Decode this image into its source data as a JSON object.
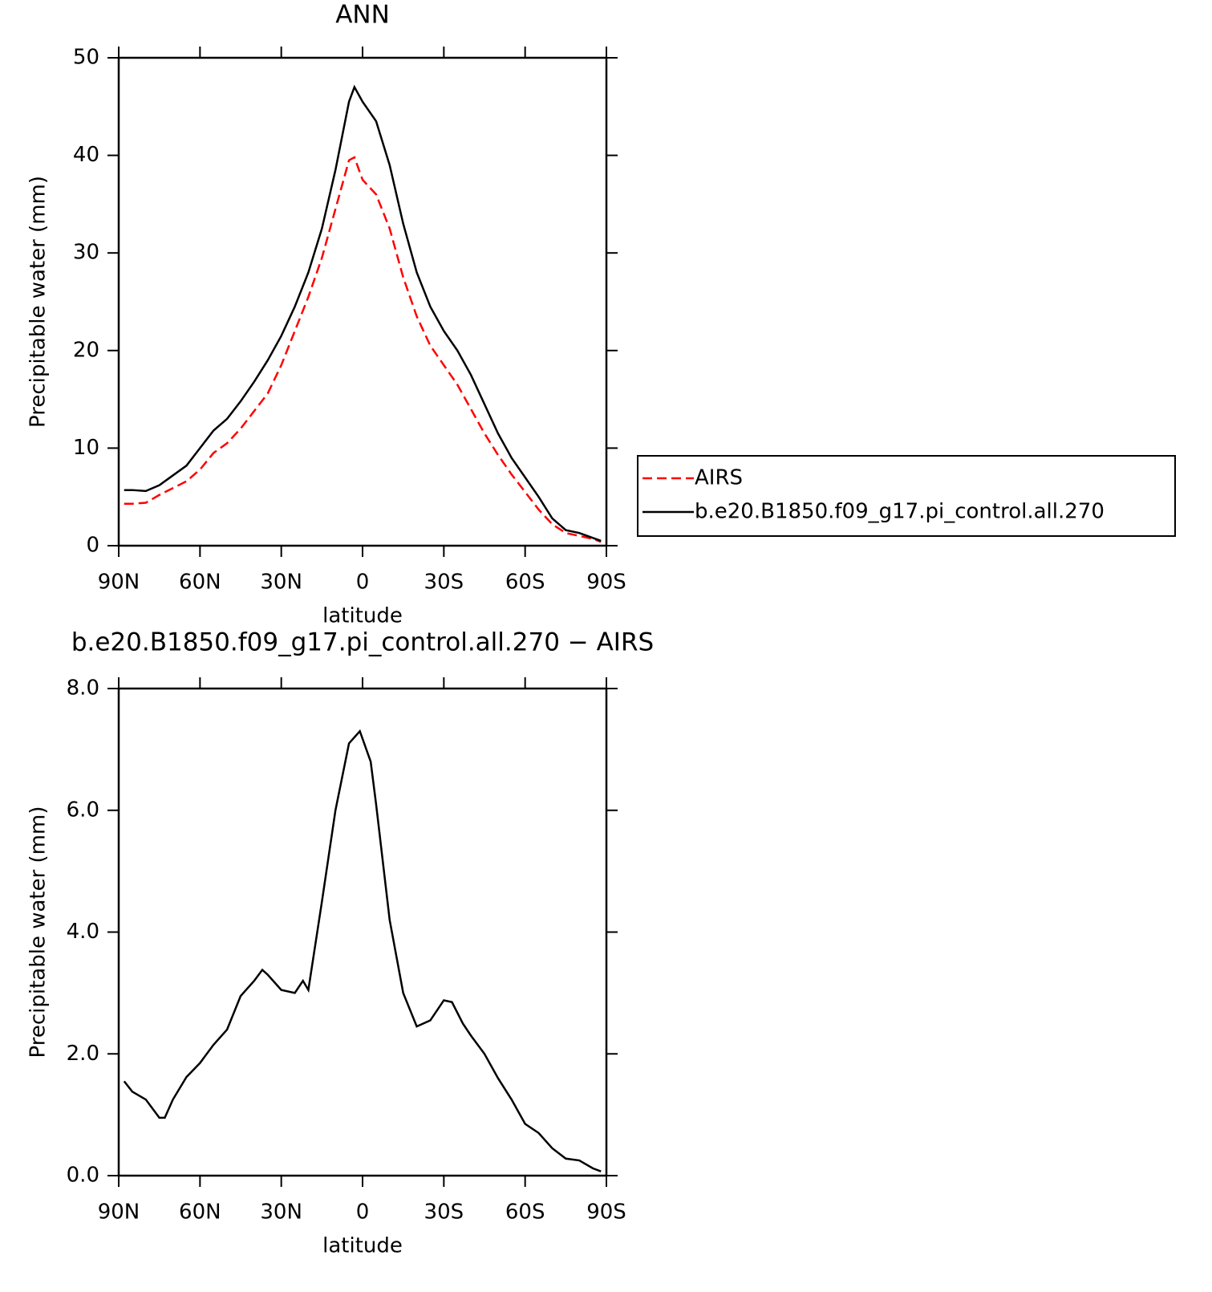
{
  "chart_data": [
    {
      "type": "line",
      "title": "ANN",
      "x_label": "latitude",
      "y_label": "Precipitable water (mm)",
      "xlim": [
        90,
        -90
      ],
      "xticks": [
        {
          "value": 90,
          "label": "90N"
        },
        {
          "value": 60,
          "label": "60N"
        },
        {
          "value": 30,
          "label": "30N"
        },
        0,
        {
          "value": -30,
          "label": "30S"
        },
        {
          "value": -60,
          "label": "60S"
        },
        {
          "value": -90,
          "label": "90S"
        }
      ],
      "ylim": [
        0,
        50
      ],
      "yticks": [
        0,
        10,
        20,
        30,
        40,
        50
      ],
      "legend": "right",
      "x": [
        88,
        85,
        80,
        75,
        70,
        65,
        60,
        55,
        50,
        45,
        40,
        35,
        30,
        25,
        20,
        15,
        10,
        5,
        3,
        0,
        -5,
        -10,
        -15,
        -20,
        -25,
        -30,
        -35,
        -40,
        -45,
        -50,
        -55,
        -60,
        -65,
        -70,
        -75,
        -80,
        -85,
        -88
      ],
      "series": [
        {
          "name": "AIRS",
          "color": "#ff0000",
          "style": "dashed",
          "values": [
            4.3,
            4.3,
            4.4,
            5.2,
            5.9,
            6.6,
            7.8,
            9.5,
            10.5,
            12.0,
            13.8,
            15.6,
            18.5,
            22.0,
            25.5,
            29.5,
            34.5,
            39.5,
            39.8,
            37.5,
            36.0,
            32.5,
            27.5,
            23.5,
            20.5,
            18.5,
            16.5,
            14.0,
            11.5,
            9.3,
            7.3,
            5.5,
            3.7,
            2.2,
            1.3,
            1.0,
            0.7,
            0.4
          ]
        },
        {
          "name": "b.e20.B1850.f09_g17.pi_control.all.270",
          "color": "#000000",
          "style": "solid",
          "values": [
            5.7,
            5.7,
            5.6,
            6.2,
            7.2,
            8.2,
            10,
            11.8,
            13.0,
            14.8,
            16.8,
            19.0,
            21.5,
            24.5,
            28.0,
            32.5,
            38.5,
            45.5,
            47.0,
            45.5,
            43.5,
            39.0,
            33.0,
            28.0,
            24.5,
            22.0,
            20.0,
            17.5,
            14.5,
            11.5,
            9.0,
            7.0,
            5.0,
            2.8,
            1.6,
            1.3,
            0.8,
            0.5
          ]
        }
      ]
    },
    {
      "type": "line",
      "title": "b.e20.B1850.f09_g17.pi_control.all.270 − AIRS",
      "x_label": "latitude",
      "y_label": "Precipitable water (mm)",
      "xlim": [
        90,
        -90
      ],
      "xticks": [
        {
          "value": 90,
          "label": "90N"
        },
        {
          "value": 60,
          "label": "60N"
        },
        {
          "value": 30,
          "label": "30N"
        },
        0,
        {
          "value": -30,
          "label": "30S"
        },
        {
          "value": -60,
          "label": "60S"
        },
        {
          "value": -90,
          "label": "90S"
        }
      ],
      "ylim": [
        0,
        8
      ],
      "yticks": [
        {
          "value": 0,
          "label": "0.0"
        },
        {
          "value": 2,
          "label": "2.0"
        },
        {
          "value": 4,
          "label": "4.0"
        },
        {
          "value": 6,
          "label": "6.0"
        },
        {
          "value": 8,
          "label": "8.0"
        }
      ],
      "x": [
        88,
        85,
        80,
        75,
        73,
        70,
        65,
        60,
        55,
        50,
        45,
        40,
        37,
        35,
        30,
        25,
        22,
        20,
        15,
        10,
        5,
        1,
        -3,
        -5,
        -10,
        -15,
        -20,
        -25,
        -30,
        -33,
        -37,
        -40,
        -45,
        -50,
        -55,
        -60,
        -65,
        -70,
        -75,
        -80,
        -85,
        -88
      ],
      "series": [
        {
          "color": "#000000",
          "style": "solid",
          "values": [
            1.55,
            1.38,
            1.25,
            0.95,
            0.95,
            1.25,
            1.62,
            1.85,
            2.15,
            2.4,
            2.95,
            3.2,
            3.38,
            3.3,
            3.05,
            3.0,
            3.2,
            3.05,
            4.5,
            6.0,
            7.1,
            7.3,
            6.8,
            6.1,
            4.2,
            3.0,
            2.45,
            2.55,
            2.88,
            2.85,
            2.5,
            2.3,
            2.0,
            1.6,
            1.25,
            0.85,
            0.7,
            0.45,
            0.28,
            0.25,
            0.12,
            0.07
          ]
        }
      ]
    }
  ]
}
